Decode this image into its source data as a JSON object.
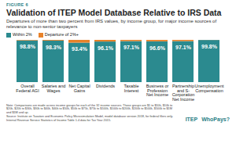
{
  "chart_data": {
    "type": "bar",
    "figure_label": "FIGURE 6",
    "title": "Validation of ITEP Model Database Relative to IRS Data",
    "subtitle": "Departures of more than two percent from IRS values, by income group, for major income sources of relevance to non-senior taxpayers",
    "categories": [
      "Overall Federal AGI",
      "Salaries and Wages",
      "Net Capital Gains",
      "Dividends",
      "Taxable Interest",
      "Business or Profession Net Income",
      "Partnership and S-Corporation Net Income",
      "Unemployment Compensation"
    ],
    "series": [
      {
        "name": "Within 2%",
        "color": "#2b8a8f",
        "values": [
          98.8,
          98.3,
          93.4,
          96.1,
          97.1,
          96.6,
          97.1,
          99.8
        ],
        "value_labels": [
          "98.8%",
          "98.3%",
          "93.4%",
          "96.1%",
          "97.1%",
          "96.6%",
          "97.1%",
          "99.8%"
        ]
      },
      {
        "name": "Departure of 2%+",
        "color": "#e8822a",
        "values": [
          1.2,
          1.7,
          6.6,
          3.9,
          2.9,
          3.4,
          2.9,
          0.2
        ]
      }
    ],
    "ylim": [
      0,
      100
    ],
    "stacked": true,
    "data_labels": true,
    "tick_labels": "x",
    "legend": "top-left",
    "note": "Note: Comparisons are made across income groups for each of the 32 income sources. Those groups are $1 to $10k, $10k to $20k, $20k to $30k, $30k to $40k, $40k to $50k, $50k to $75k, $75k to $100k, $100k to $200k, $200k to $500k, $500k to $1M and $1M and up.",
    "source": "Source: Institute on Taxation and Economic Policy Microsimulation Model, model database version 2018, for federal filers only. Internal Revenue Service Statistics of Income Table 1.4 data for Tax Year 2015.",
    "logos": [
      "ITEP",
      "WhoPays?"
    ]
  }
}
